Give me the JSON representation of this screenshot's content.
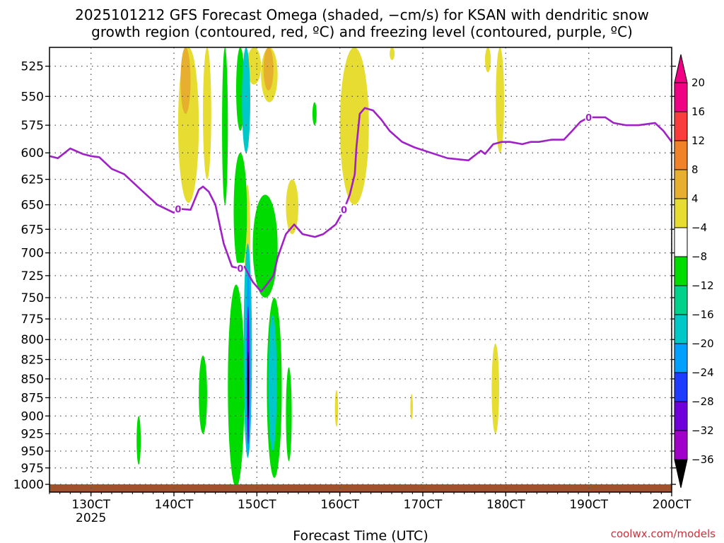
{
  "title_lines": [
    "2025101212 GFS Forecast Omega (shaded, −cm/s) for KSAN with dendritic snow",
    "growth region (contoured, red, ºC) and freezing level (contoured, purple, ºC)"
  ],
  "credit": "coolwx.com/models",
  "chart_data": {
    "type": "heatmap",
    "title": "2025101212 GFS Forecast Omega (shaded, −cm/s) for KSAN with dendritic snow growth region (contoured, red, ºC) and freezing level (contoured, purple, ºC)",
    "xlabel": "Forecast Time (UTC)",
    "ylabel": "",
    "x_ticks": [
      "130CT",
      "140CT",
      "150CT",
      "160CT",
      "170CT",
      "180CT",
      "190CT",
      "200CT"
    ],
    "x_tick_values": [
      13,
      14,
      15,
      16,
      17,
      18,
      19,
      20
    ],
    "x_sublabel": "2025",
    "xlim": [
      12.5,
      20.0
    ],
    "y_ticks": [
      525,
      550,
      575,
      600,
      625,
      650,
      675,
      700,
      725,
      750,
      775,
      800,
      825,
      850,
      875,
      900,
      925,
      950,
      975,
      1000
    ],
    "ylim": [
      1012,
      510
    ],
    "y_scale": "log-pressure",
    "grid": true,
    "colorbar": {
      "levels": [
        -36,
        -32,
        -28,
        -24,
        -20,
        -16,
        -12,
        -8,
        -4,
        4,
        8,
        12,
        16,
        20
      ],
      "label_levels": [
        20,
        16,
        12,
        8,
        4,
        -4,
        -8,
        -12,
        -16,
        -20,
        -24,
        -28,
        -32,
        -36
      ],
      "colors": [
        "#a0a0a0",
        "#a000c8",
        "#6e00dc",
        "#1e3cff",
        "#00a0ff",
        "#00c8c8",
        "#00d28c",
        "#00dc00",
        "#ffffff",
        "#e6dc32",
        "#e6af2d",
        "#f08228",
        "#fa3c3c",
        "#f00082"
      ],
      "under_color": "#000000",
      "over_color": "#f00082"
    },
    "freezing_level": {
      "label": "0",
      "color": "#a020c8",
      "x": [
        12.5,
        12.6,
        12.75,
        12.9,
        13.0,
        13.1,
        13.25,
        13.4,
        13.6,
        13.8,
        14.0,
        14.05,
        14.2,
        14.3,
        14.35,
        14.42,
        14.5,
        14.6,
        14.7,
        14.8,
        14.85,
        14.95,
        15.05,
        15.12,
        15.2,
        15.25,
        15.35,
        15.45,
        15.55,
        15.7,
        15.8,
        15.95,
        16.05,
        16.12,
        16.18,
        16.2,
        16.24,
        16.3,
        16.4,
        16.5,
        16.6,
        16.75,
        16.9,
        17.1,
        17.3,
        17.55,
        17.7,
        17.75,
        17.85,
        17.95,
        18.05,
        18.2,
        18.3,
        18.4,
        18.55,
        18.7,
        18.8,
        18.9,
        19.0,
        19.2,
        19.3,
        19.45,
        19.6,
        19.8,
        19.9,
        20.0
      ],
      "y": [
        603,
        605,
        596,
        601,
        603,
        604,
        615,
        620,
        635,
        650,
        658,
        654,
        655,
        635,
        632,
        637,
        650,
        690,
        715,
        717,
        715,
        732,
        743,
        735,
        725,
        705,
        680,
        670,
        680,
        683,
        680,
        670,
        655,
        640,
        620,
        595,
        565,
        560,
        562,
        570,
        580,
        590,
        595,
        600,
        605,
        607,
        598,
        601,
        592,
        590,
        590,
        592,
        590,
        590,
        588,
        588,
        580,
        572,
        568,
        568,
        573,
        575,
        575,
        573,
        580,
        590
      ]
    },
    "omega_regions": [
      {
        "value": 6,
        "x": [
          14.05,
          14.3
        ],
        "p": [
          510,
          648
        ]
      },
      {
        "value": 10,
        "x": [
          14.08,
          14.2
        ],
        "p": [
          510,
          565
        ]
      },
      {
        "value": 6,
        "x": [
          14.35,
          14.45
        ],
        "p": [
          510,
          625
        ]
      },
      {
        "value": 6,
        "x": [
          14.88,
          15.05
        ],
        "p": [
          510,
          540
        ]
      },
      {
        "value": 6,
        "x": [
          15.05,
          15.25
        ],
        "p": [
          510,
          555
        ]
      },
      {
        "value": 10,
        "x": [
          15.08,
          15.2
        ],
        "p": [
          510,
          545
        ]
      },
      {
        "value": 6,
        "x": [
          15.35,
          15.5
        ],
        "p": [
          625,
          680
        ]
      },
      {
        "value": 6,
        "x": [
          16.0,
          16.35
        ],
        "p": [
          510,
          650
        ]
      },
      {
        "value": 6,
        "x": [
          16.6,
          16.66
        ],
        "p": [
          510,
          520
        ]
      },
      {
        "value": 6,
        "x": [
          17.75,
          17.82
        ],
        "p": [
          510,
          530
        ]
      },
      {
        "value": 6,
        "x": [
          17.88,
          17.98
        ],
        "p": [
          510,
          600
        ]
      },
      {
        "value": 6,
        "x": [
          17.83,
          17.92
        ],
        "p": [
          805,
          925
        ]
      },
      {
        "value": 6,
        "x": [
          15.94,
          15.98
        ],
        "p": [
          865,
          915
        ]
      },
      {
        "value": 6,
        "x": [
          16.85,
          16.88
        ],
        "p": [
          870,
          905
        ]
      },
      {
        "value": 6,
        "x": [
          14.85,
          14.92
        ],
        "p": [
          630,
          740
        ]
      },
      {
        "value": -6,
        "x": [
          14.58,
          14.65
        ],
        "p": [
          510,
          650
        ]
      },
      {
        "value": -6,
        "x": [
          14.75,
          14.85
        ],
        "p": [
          510,
          580
        ]
      },
      {
        "value": -6,
        "x": [
          14.72,
          14.88
        ],
        "p": [
          600,
          720
        ]
      },
      {
        "value": -6,
        "x": [
          14.65,
          14.85
        ],
        "p": [
          735,
          1005
        ]
      },
      {
        "value": -6,
        "x": [
          14.95,
          15.25
        ],
        "p": [
          640,
          750
        ]
      },
      {
        "value": -6,
        "x": [
          15.12,
          15.3
        ],
        "p": [
          750,
          990
        ]
      },
      {
        "value": -6,
        "x": [
          14.3,
          14.4
        ],
        "p": [
          820,
          925
        ]
      },
      {
        "value": -6,
        "x": [
          13.55,
          13.6
        ],
        "p": [
          900,
          970
        ]
      },
      {
        "value": -6,
        "x": [
          15.35,
          15.42
        ],
        "p": [
          835,
          965
        ]
      },
      {
        "value": -6,
        "x": [
          15.67,
          15.72
        ],
        "p": [
          555,
          575
        ]
      },
      {
        "value": -14,
        "x": [
          14.82,
          14.92
        ],
        "p": [
          510,
          600
        ]
      },
      {
        "value": -14,
        "x": [
          14.84,
          14.94
        ],
        "p": [
          690,
          960
        ]
      },
      {
        "value": -18,
        "x": [
          14.87,
          14.92
        ],
        "p": [
          720,
          955
        ]
      },
      {
        "value": -14,
        "x": [
          15.14,
          15.24
        ],
        "p": [
          770,
          950
        ]
      },
      {
        "value": -26,
        "x": [
          14.88,
          14.91
        ],
        "p": [
          760,
          940
        ]
      },
      {
        "value": -40,
        "x": [
          14.89,
          14.9
        ],
        "p": [
          815,
          905
        ]
      }
    ],
    "terrain": {
      "color": "#a0522d",
      "p_top": 1000
    }
  }
}
